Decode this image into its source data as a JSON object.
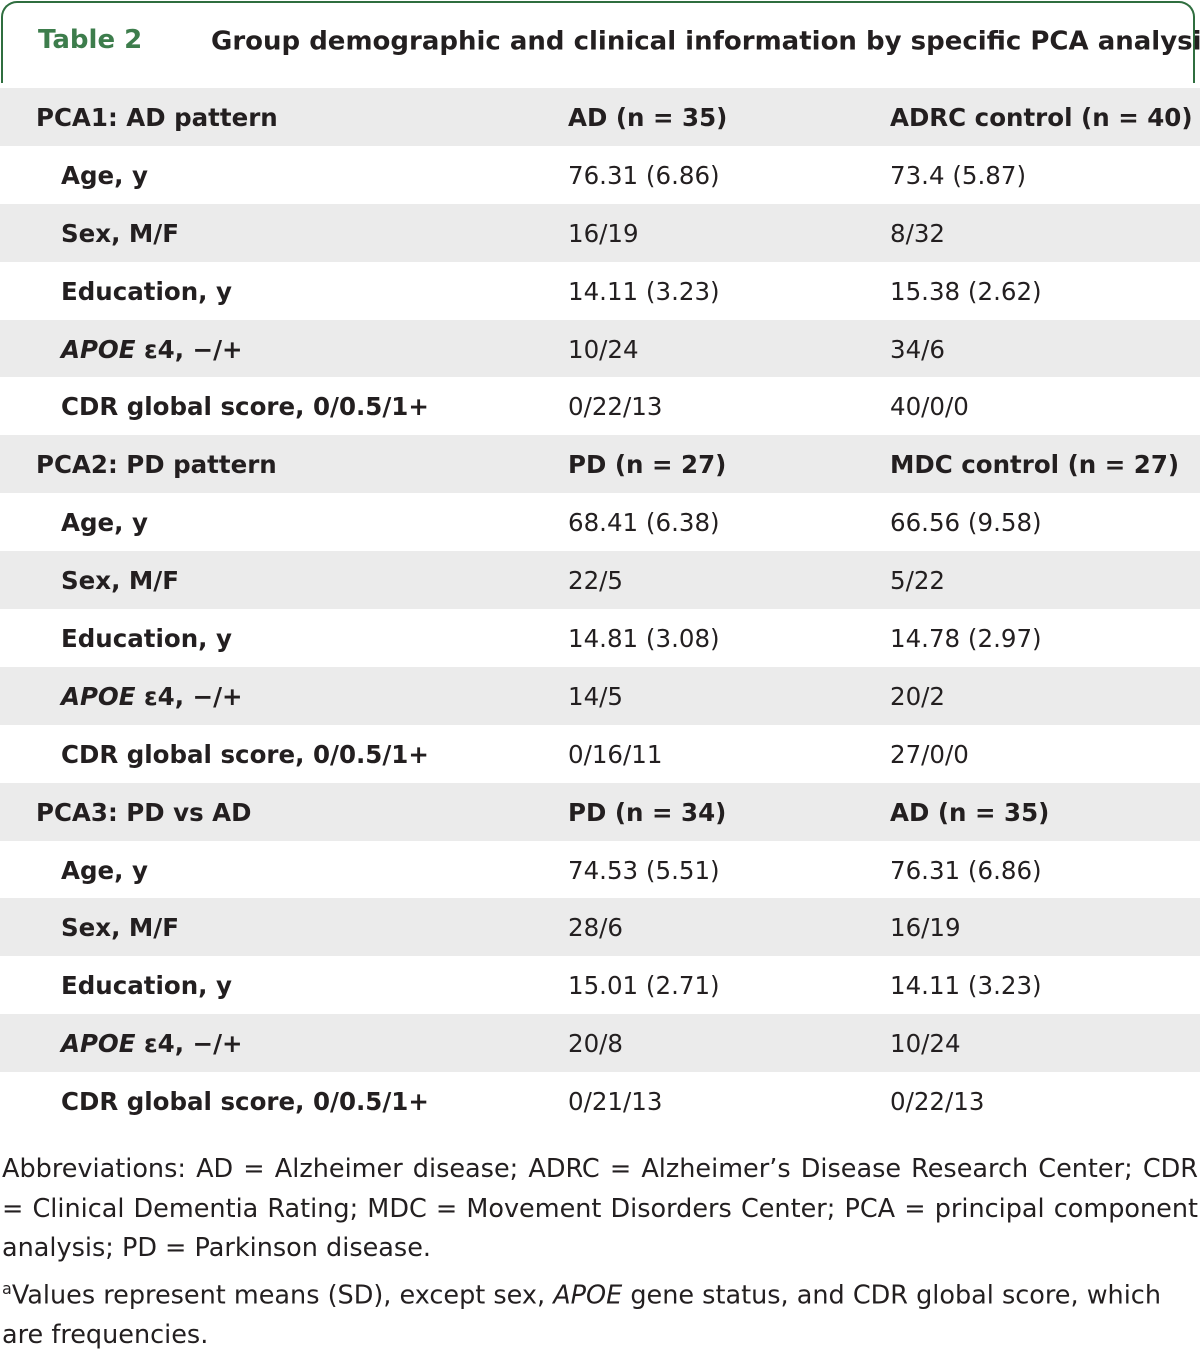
{
  "header": {
    "number": "Table 2",
    "title": "Group demographic and clinical information by specific PCA analysis",
    "footnote_marker": "a"
  },
  "table": {
    "rows": [
      {
        "kind": "group",
        "label": "PCA1: AD pattern",
        "values": [
          "AD (n = 35)",
          "ADRC control (n = 40)"
        ]
      },
      {
        "kind": "data",
        "label": "Age, y",
        "values": [
          "76.31 (6.86)",
          "73.4 (5.87)"
        ]
      },
      {
        "kind": "data",
        "label": "Sex, M/F",
        "values": [
          "16/19",
          "8/32"
        ]
      },
      {
        "kind": "data",
        "label": "Education, y",
        "values": [
          "14.11 (3.23)",
          "15.38 (2.62)"
        ]
      },
      {
        "kind": "data",
        "label_italic": "APOE",
        "label": "ε4, −/+",
        "values": [
          "10/24",
          "34/6"
        ]
      },
      {
        "kind": "data",
        "label": "CDR global score, 0/0.5/1+",
        "values": [
          "0/22/13",
          "40/0/0"
        ]
      },
      {
        "kind": "group",
        "label": "PCA2: PD pattern",
        "values": [
          "PD (n = 27)",
          "MDC control (n = 27)"
        ]
      },
      {
        "kind": "data",
        "label": "Age, y",
        "values": [
          "68.41 (6.38)",
          "66.56 (9.58)"
        ]
      },
      {
        "kind": "data",
        "label": "Sex, M/F",
        "values": [
          "22/5",
          "5/22"
        ]
      },
      {
        "kind": "data",
        "label": "Education, y",
        "values": [
          "14.81 (3.08)",
          "14.78 (2.97)"
        ]
      },
      {
        "kind": "data",
        "label_italic": "APOE",
        "label": "ε4, −/+",
        "values": [
          "14/5",
          "20/2"
        ]
      },
      {
        "kind": "data",
        "label": "CDR global score, 0/0.5/1+",
        "values": [
          "0/16/11",
          "27/0/0"
        ]
      },
      {
        "kind": "group",
        "label": "PCA3: PD vs AD",
        "values": [
          "PD (n = 34)",
          "AD (n = 35)"
        ]
      },
      {
        "kind": "data",
        "label": "Age, y",
        "values": [
          "74.53 (5.51)",
          "76.31 (6.86)"
        ]
      },
      {
        "kind": "data",
        "label": "Sex, M/F",
        "values": [
          "28/6",
          "16/19"
        ]
      },
      {
        "kind": "data",
        "label": "Education, y",
        "values": [
          "15.01 (2.71)",
          "14.11 (3.23)"
        ]
      },
      {
        "kind": "data",
        "label_italic": "APOE",
        "label": "ε4, −/+",
        "values": [
          "20/8",
          "10/24"
        ]
      },
      {
        "kind": "data",
        "label": "CDR global score, 0/0.5/1+",
        "values": [
          "0/21/13",
          "0/22/13"
        ]
      }
    ]
  },
  "footnotes": {
    "abbreviations": "Abbreviations: AD = Alzheimer disease; ADRC = Alzheimer’s Disease Research Center; CDR = Clinical Dementia Rating; MDC = Movement Disorders Center; PCA = principal component analysis; PD = Parkinson disease.",
    "note_marker": "a",
    "note": [
      {
        "text": "Values represent means (SD), except sex, "
      },
      {
        "text": "APOE",
        "italic": true
      },
      {
        "text": " gene status, and CDR global score, which are frequencies."
      }
    ]
  }
}
